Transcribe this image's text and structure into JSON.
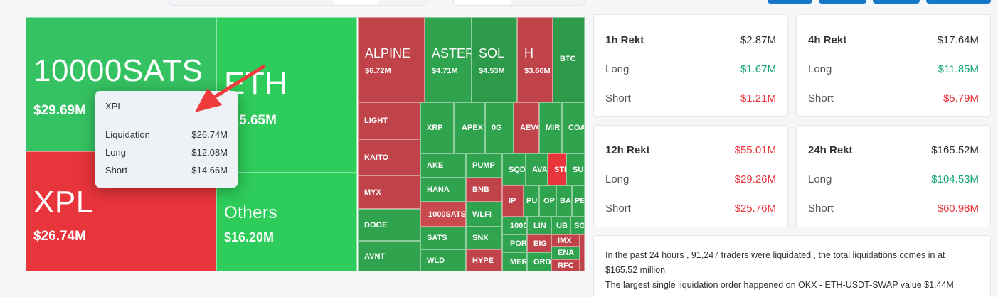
{
  "heatmap": {
    "big": [
      {
        "name": "10000SATS",
        "value": "$29.69M"
      },
      {
        "name": "ETH",
        "value": "$25.65M"
      },
      {
        "name": "XPL",
        "value": "$26.74M"
      },
      {
        "name": "Others",
        "value": "$16.20M"
      }
    ],
    "mid": [
      {
        "name": "ALPINE",
        "value": "$6.72M"
      },
      {
        "name": "ASTER",
        "value": "$4.71M"
      },
      {
        "name": "SOL",
        "value": "$4.53M"
      },
      {
        "name": "H",
        "value": "$3.60M"
      }
    ],
    "small": [
      "BTC",
      "LIGHT",
      "KAITO",
      "MYX",
      "DOGE",
      "AVNT",
      "XRP",
      "APEX",
      "0G",
      "AEVO",
      "MIR",
      "COA",
      "AKE",
      "PUMP",
      "SQD",
      "AVA",
      "STB",
      "SU",
      "HANA",
      "BNB",
      "IP",
      "PU",
      "OP",
      "BA",
      "PE",
      "1000SATS",
      "WLFI",
      "1000",
      "LIN",
      "UB",
      "SO",
      "SATS",
      "SNX",
      "PORT",
      "EIG",
      "IMX",
      "WLD",
      "HYPE",
      "MER",
      "ORD",
      "ENA",
      "RFC"
    ]
  },
  "tooltip": {
    "title": "XPL",
    "rows": [
      {
        "label": "Liquidation",
        "value": "$26.74M"
      },
      {
        "label": "Long",
        "value": "$12.08M"
      },
      {
        "label": "Short",
        "value": "$14.66M"
      }
    ]
  },
  "cards": [
    {
      "title": "1h Rekt",
      "total": "$2.87M",
      "long_label": "Long",
      "long": "$1.67M",
      "short_label": "Short",
      "short": "$1.21M"
    },
    {
      "title": "4h Rekt",
      "total": "$17.64M",
      "long_label": "Long",
      "long": "$11.85M",
      "short_label": "Short",
      "short": "$5.79M"
    },
    {
      "title": "12h Rekt",
      "total": "$55.01M",
      "long_label": "Long",
      "long": "$29.26M",
      "short_label": "Short",
      "short": "$25.76M"
    },
    {
      "title": "24h Rekt",
      "total": "$165.52M",
      "long_label": "Long",
      "long": "$104.53M",
      "short_label": "Short",
      "short": "$60.98M"
    }
  ],
  "summary": {
    "line1": "In the past 24 hours , 91,247 traders were liquidated , the total liquidations comes in at $165.52 million",
    "line2": "The largest single liquidation order happened on OKX - ETH-USDT-SWAP value $1.44M"
  },
  "colors": {
    "positive": "#17a673",
    "negative": "#e8343b",
    "arrow": "#ee3b3b"
  }
}
